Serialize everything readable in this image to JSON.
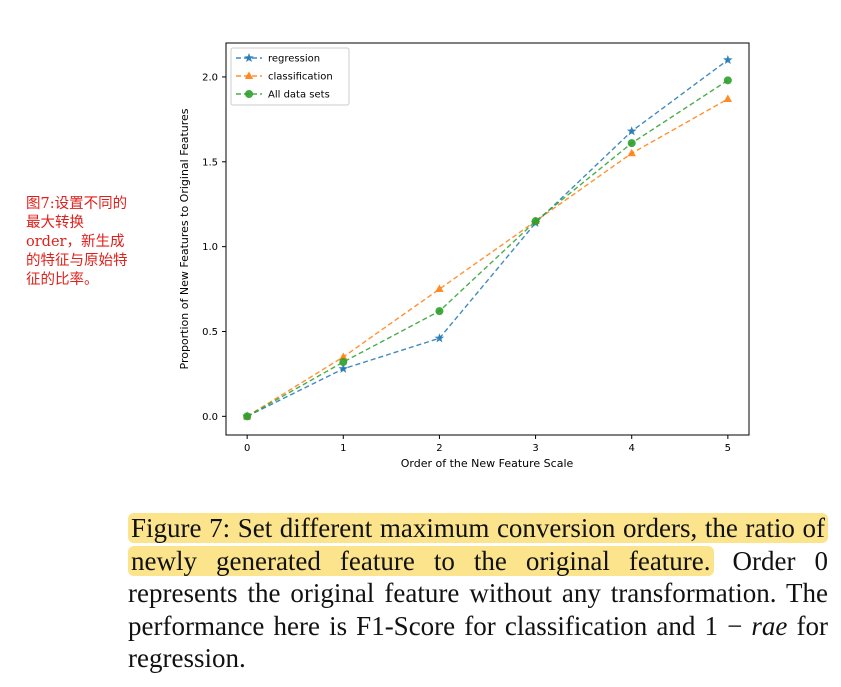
{
  "annotation": {
    "text": "图7:设置不同的最大转换order，新生成的特征与原始特征的比率。"
  },
  "chart_data": {
    "type": "line",
    "title": "",
    "xlabel": "Order of the New Feature Scale",
    "ylabel": "Proportion of New Features to Original Features",
    "x": [
      0,
      1,
      2,
      3,
      4,
      5
    ],
    "xlim": [
      -0.22,
      5.22
    ],
    "ylim": [
      -0.11,
      2.2
    ],
    "xticks": [
      "0",
      "1",
      "2",
      "3",
      "4",
      "5"
    ],
    "yticks": [
      "0.0",
      "0.5",
      "1.0",
      "1.5",
      "2.0"
    ],
    "legend_position": "top-left",
    "grid": false,
    "series": [
      {
        "name": "regression",
        "marker": "star",
        "color": "#1f77b4",
        "values": [
          0.0,
          0.28,
          0.46,
          1.14,
          1.68,
          2.1
        ]
      },
      {
        "name": "classification",
        "marker": "triangle",
        "color": "#ff7f0e",
        "values": [
          0.0,
          0.35,
          0.75,
          1.15,
          1.55,
          1.87
        ]
      },
      {
        "name": "All data sets",
        "marker": "circle",
        "color": "#2ca02c",
        "values": [
          0.0,
          0.32,
          0.62,
          1.15,
          1.61,
          1.98
        ]
      }
    ]
  },
  "caption": {
    "highlight": "Figure 7: Set different maximum conversion orders, the ratio of newly generated feature to the original feature.",
    "rest_1": " Order 0 represents the original feature without any transformation. The performance here is F1-Score for classification and 1 − ",
    "math": "rae",
    "rest_2": " for regression."
  }
}
